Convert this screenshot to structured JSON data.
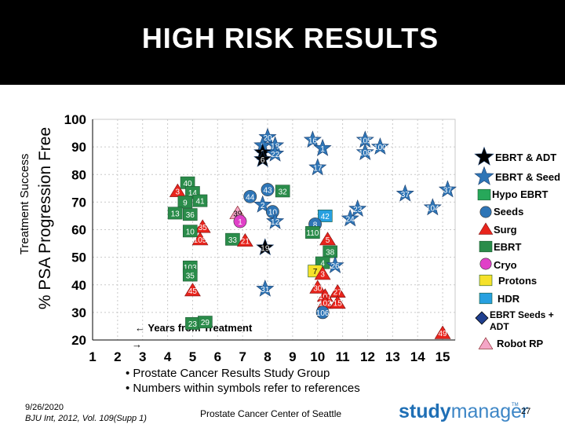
{
  "slide": {
    "title": "HIGH RISK RESULTS",
    "bullets": [
      "• Prostate Cancer Results Study Group",
      "• Numbers within symbols refer to references"
    ],
    "date": "9/26/2020",
    "citation": "BJU Int, 2012, Vol. 109(Supp 1)",
    "center_footer": "Prostate Cancer Center of Seattle",
    "logo_part1": "study",
    "logo_part2": "manager",
    "logo_tm": "TM",
    "page_number": "27"
  },
  "chart_data": {
    "type": "scatter",
    "title": "HIGH RISK RESULTS",
    "ylabel_line1": "Treatment Success",
    "ylabel_line2": "% PSA Progression Free",
    "xlabel": "← Years from Treatment",
    "x_arrow": "→",
    "xlim": [
      1,
      15.5
    ],
    "ylim": [
      20,
      100
    ],
    "xticks": [
      1,
      2,
      3,
      4,
      5,
      6,
      7,
      8,
      9,
      10,
      11,
      12,
      13,
      14,
      15
    ],
    "yticks": [
      20,
      30,
      40,
      50,
      60,
      70,
      80,
      90,
      100
    ],
    "legend": [
      {
        "label": "EBRT & ADT",
        "shape": "star",
        "color": "#000000"
      },
      {
        "label": "EBRT & Seed",
        "shape": "star",
        "color": "#2e75b6"
      },
      {
        "label": "Hypo EBRT",
        "shape": "square",
        "color": "#27a85a"
      },
      {
        "label": "Seeds",
        "shape": "circle",
        "color": "#2e75b6"
      },
      {
        "label": "Surg",
        "shape": "triangle",
        "color": "#e8241c"
      },
      {
        "label": "EBRT",
        "shape": "square",
        "color": "#2a8c4a"
      },
      {
        "label": "Cryo",
        "shape": "circle",
        "color": "#e040c8"
      },
      {
        "label": "Protons",
        "shape": "square",
        "color": "#f5e12a"
      },
      {
        "label": "HDR",
        "shape": "square",
        "color": "#27a0e0"
      },
      {
        "label": "EBRT Seeds + ADT",
        "shape": "diamond",
        "color": "#1f3f8f"
      },
      {
        "label": "Robot RP",
        "shape": "triangle",
        "color": "#f4a6c6"
      }
    ],
    "points": [
      {
        "x": 8.0,
        "y": 93.5,
        "label": "20",
        "type": "EBRT & Seed"
      },
      {
        "x": 7.8,
        "y": 90.5,
        "label": "1",
        "type": "EBRT & Seed"
      },
      {
        "x": 8.3,
        "y": 90.5,
        "label": "18",
        "type": "EBRT & Seed"
      },
      {
        "x": 7.8,
        "y": 88.0,
        "label": "1",
        "type": "EBRT & ADT"
      },
      {
        "x": 8.3,
        "y": 87.5,
        "label": "22",
        "type": "EBRT & Seed"
      },
      {
        "x": 7.8,
        "y": 85.5,
        "label": "6",
        "type": "EBRT & ADT"
      },
      {
        "x": 9.8,
        "y": 92.5,
        "label": "16",
        "type": "EBRT & Seed"
      },
      {
        "x": 10.2,
        "y": 89.5,
        "label": "1",
        "type": "EBRT & Seed"
      },
      {
        "x": 11.9,
        "y": 92.5,
        "label": "105",
        "type": "EBRT & Seed"
      },
      {
        "x": 12.5,
        "y": 90.0,
        "label": "100",
        "type": "EBRT & Seed"
      },
      {
        "x": 11.9,
        "y": 88.0,
        "label": "108",
        "type": "EBRT & Seed"
      },
      {
        "x": 10.0,
        "y": 82.5,
        "label": "17",
        "type": "EBRT & Seed"
      },
      {
        "x": 4.8,
        "y": 77.0,
        "label": "40",
        "type": "EBRT"
      },
      {
        "x": 4.4,
        "y": 74.0,
        "label": "3",
        "type": "Surg"
      },
      {
        "x": 5.0,
        "y": 73.5,
        "label": "14",
        "type": "EBRT"
      },
      {
        "x": 4.7,
        "y": 70.0,
        "label": "9",
        "type": "EBRT"
      },
      {
        "x": 5.3,
        "y": 70.5,
        "label": "41",
        "type": "EBRT"
      },
      {
        "x": 4.3,
        "y": 66.0,
        "label": "13",
        "type": "EBRT"
      },
      {
        "x": 4.9,
        "y": 65.5,
        "label": "36",
        "type": "EBRT"
      },
      {
        "x": 7.3,
        "y": 72.0,
        "label": "44",
        "type": "Seeds"
      },
      {
        "x": 8.0,
        "y": 74.5,
        "label": "43",
        "type": "Seeds"
      },
      {
        "x": 8.6,
        "y": 74.0,
        "label": "32",
        "type": "EBRT"
      },
      {
        "x": 7.8,
        "y": 69.0,
        "label": "2",
        "type": "EBRT & Seed"
      },
      {
        "x": 8.2,
        "y": 66.5,
        "label": "10",
        "type": "Seeds"
      },
      {
        "x": 8.3,
        "y": 63.0,
        "label": "12",
        "type": "EBRT & Seed"
      },
      {
        "x": 6.8,
        "y": 66.0,
        "label": "39",
        "type": "Robot RP"
      },
      {
        "x": 6.9,
        "y": 63.0,
        "label": "1",
        "type": "Cryo"
      },
      {
        "x": 5.4,
        "y": 61.0,
        "label": "35",
        "type": "Surg"
      },
      {
        "x": 4.9,
        "y": 59.5,
        "label": "10",
        "type": "EBRT"
      },
      {
        "x": 5.3,
        "y": 56.5,
        "label": "105",
        "type": "Surg"
      },
      {
        "x": 6.6,
        "y": 56.5,
        "label": "33",
        "type": "EBRT"
      },
      {
        "x": 7.1,
        "y": 56.0,
        "label": "21",
        "type": "Surg"
      },
      {
        "x": 7.9,
        "y": 53.5,
        "label": "19",
        "type": "EBRT & ADT"
      },
      {
        "x": 10.3,
        "y": 65.0,
        "label": "42",
        "type": "HDR"
      },
      {
        "x": 9.9,
        "y": 62.0,
        "label": "8",
        "type": "Seeds"
      },
      {
        "x": 9.8,
        "y": 59.0,
        "label": "110",
        "type": "EBRT"
      },
      {
        "x": 10.4,
        "y": 56.5,
        "label": "5",
        "type": "Surg"
      },
      {
        "x": 10.5,
        "y": 52.0,
        "label": "38",
        "type": "EBRT"
      },
      {
        "x": 10.2,
        "y": 48.0,
        "label": "4",
        "type": "EBRT"
      },
      {
        "x": 10.7,
        "y": 47.0,
        "label": "26",
        "type": "EBRT & Seed"
      },
      {
        "x": 9.9,
        "y": 45.0,
        "label": "7",
        "type": "Protons"
      },
      {
        "x": 10.2,
        "y": 44.0,
        "label": "3",
        "type": "Surg"
      },
      {
        "x": 11.6,
        "y": 67.5,
        "label": "23",
        "type": "EBRT & Seed"
      },
      {
        "x": 11.3,
        "y": 64.0,
        "label": "24",
        "type": "EBRT & Seed"
      },
      {
        "x": 13.5,
        "y": 73.0,
        "label": "37",
        "type": "EBRT & Seed"
      },
      {
        "x": 15.2,
        "y": 74.5,
        "label": "37",
        "type": "EBRT & Seed"
      },
      {
        "x": 14.6,
        "y": 68.0,
        "label": "104",
        "type": "EBRT & Seed"
      },
      {
        "x": 4.9,
        "y": 46.5,
        "label": "103",
        "type": "EBRT"
      },
      {
        "x": 4.9,
        "y": 43.5,
        "label": "35",
        "type": "EBRT"
      },
      {
        "x": 5.0,
        "y": 38.0,
        "label": "45",
        "type": "Surg"
      },
      {
        "x": 7.9,
        "y": 38.5,
        "label": "31",
        "type": "EBRT & Seed"
      },
      {
        "x": 10.0,
        "y": 39.0,
        "label": "30",
        "type": "Surg"
      },
      {
        "x": 10.3,
        "y": 36.0,
        "label": "107",
        "type": "Surg"
      },
      {
        "x": 10.8,
        "y": 37.5,
        "label": "27",
        "type": "Surg"
      },
      {
        "x": 10.3,
        "y": 33.5,
        "label": "102",
        "type": "Surg"
      },
      {
        "x": 10.8,
        "y": 33.5,
        "label": "15",
        "type": "Surg"
      },
      {
        "x": 10.2,
        "y": 30.0,
        "label": "106",
        "type": "Seeds"
      },
      {
        "x": 5.0,
        "y": 26.0,
        "label": "23",
        "type": "EBRT"
      },
      {
        "x": 5.5,
        "y": 26.5,
        "label": "29",
        "type": "EBRT"
      },
      {
        "x": 15.0,
        "y": 22.5,
        "label": "49",
        "type": "Surg"
      }
    ]
  }
}
